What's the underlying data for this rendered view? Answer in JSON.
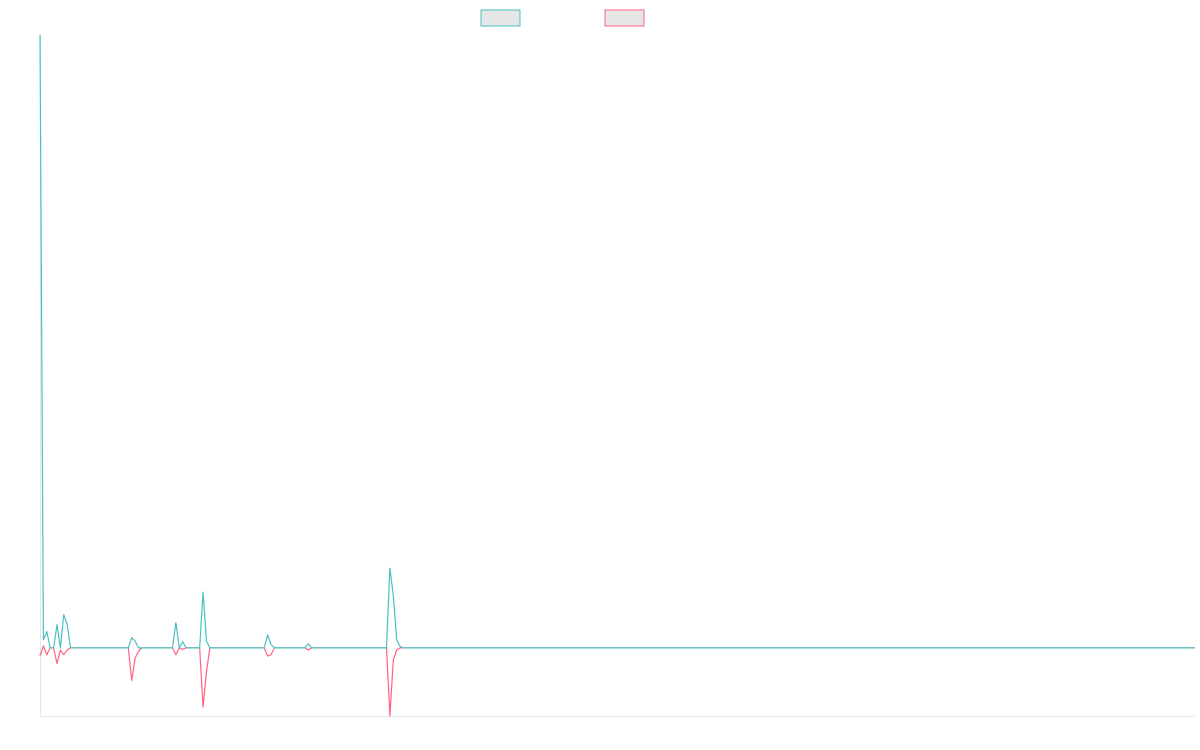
{
  "chart_data": {
    "type": "line",
    "x": [
      0,
      1,
      2,
      3,
      4,
      5,
      6,
      7,
      8,
      9,
      26,
      27,
      28,
      29,
      30,
      39,
      40,
      41,
      42,
      43,
      47,
      48,
      49,
      50,
      66,
      67,
      68,
      69,
      78,
      79,
      80,
      102,
      103,
      104,
      105,
      106,
      107,
      340
    ],
    "xlim": [
      0,
      340
    ],
    "ylim": [
      -1,
      9
    ],
    "series": [
      {
        "color": "#ff6384",
        "values": [
          -0.12,
          0.03,
          -0.1,
          0,
          0,
          -0.23,
          -0.03,
          -0.1,
          -0.03,
          0,
          0,
          -0.48,
          -0.15,
          -0.05,
          0,
          0,
          -0.1,
          0,
          -0.02,
          0,
          0,
          -0.87,
          -0.35,
          0,
          0,
          -0.12,
          -0.1,
          0,
          0,
          -0.03,
          0,
          0,
          -1.0,
          -0.18,
          -0.03,
          0,
          0,
          0
        ]
      },
      {
        "color": "#4bc0c0",
        "values": [
          9,
          0.12,
          0.24,
          0,
          0,
          0.34,
          0,
          0.49,
          0.34,
          0,
          0,
          0.15,
          0.1,
          0,
          0,
          0,
          0.37,
          0,
          0.09,
          0,
          0,
          0.82,
          0.1,
          0,
          0,
          0.19,
          0.05,
          0,
          0,
          0.06,
          0,
          0,
          1.17,
          0.77,
          0.12,
          0.02,
          0,
          0
        ]
      }
    ],
    "legend_order": [
      1,
      0
    ]
  }
}
